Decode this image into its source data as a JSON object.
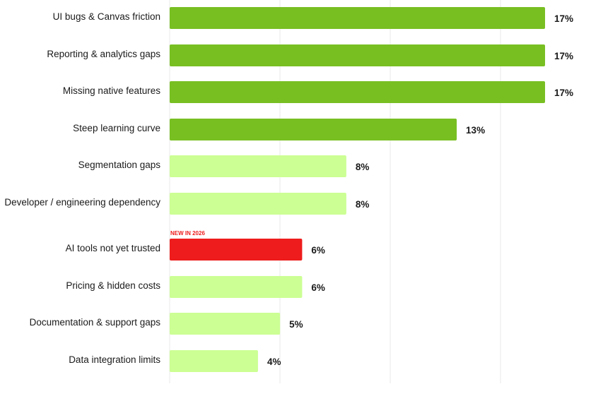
{
  "chart_data": {
    "type": "bar",
    "orientation": "horizontal",
    "categories": [
      "UI bugs & Canvas friction",
      "Reporting & analytics gaps",
      "Missing native features",
      "Steep learning curve",
      "Segmentation gaps",
      "Developer / engineering dependency",
      "AI tools not yet trusted",
      "Pricing & hidden costs",
      "Documentation & support gaps",
      "Data integration limits"
    ],
    "values": [
      17,
      17,
      17,
      13,
      8,
      8,
      6,
      6,
      5,
      4
    ],
    "value_labels": [
      "17%",
      "17%",
      "17%",
      "13%",
      "8%",
      "8%",
      "6%",
      "6%",
      "5%",
      "4%"
    ],
    "tiers": [
      "high",
      "high",
      "high",
      "high",
      "low",
      "low",
      "new",
      "low",
      "low",
      "low"
    ],
    "annotations": [
      {
        "category": "AI tools not yet trusted",
        "text": "NEW IN 2026"
      }
    ],
    "xlim": [
      0,
      17
    ],
    "grid": true,
    "legend": "none",
    "colors": {
      "high": "#78bf22",
      "low": "#ccff94",
      "new": "#ee1c1c",
      "badge_text": "#ee1c1c",
      "gridline": "#e9e9e9",
      "text": "#1a1a1a"
    }
  }
}
